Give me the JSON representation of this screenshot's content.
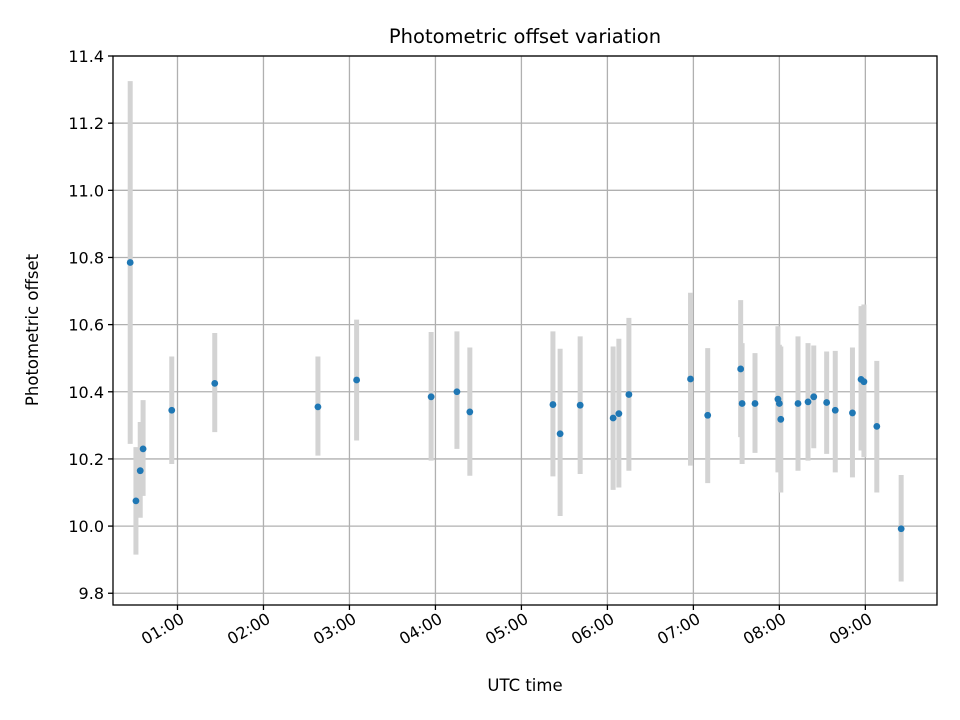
{
  "chart_data": {
    "type": "scatter",
    "title": "Photometric offset variation",
    "xlabel": "UTC time",
    "ylabel": "Photometric offset",
    "x_unit": "UTC time (HH:MM)",
    "xlim": [
      "00:15",
      "09:50"
    ],
    "ylim": [
      9.765,
      11.4
    ],
    "grid": true,
    "x_ticks": [
      "01:00",
      "02:00",
      "03:00",
      "04:00",
      "05:00",
      "06:00",
      "07:00",
      "08:00",
      "09:00"
    ],
    "y_ticks": [
      "9.8",
      "10.0",
      "10.2",
      "10.4",
      "10.6",
      "10.8",
      "11.0",
      "11.2",
      "11.4"
    ],
    "colors": {
      "points": "#1f77b4",
      "errorbars": "#d3d3d3"
    },
    "points": [
      {
        "x": "00:27",
        "y": 10.785,
        "lo": 10.245,
        "hi": 11.325
      },
      {
        "x": "00:31",
        "y": 10.075,
        "lo": 9.915,
        "hi": 10.235
      },
      {
        "x": "00:34",
        "y": 10.165,
        "lo": 10.025,
        "hi": 10.31
      },
      {
        "x": "00:36",
        "y": 10.23,
        "lo": 10.09,
        "hi": 10.375
      },
      {
        "x": "00:56",
        "y": 10.345,
        "lo": 10.185,
        "hi": 10.505
      },
      {
        "x": "01:26",
        "y": 10.425,
        "lo": 10.28,
        "hi": 10.575
      },
      {
        "x": "02:38",
        "y": 10.355,
        "lo": 10.21,
        "hi": 10.505
      },
      {
        "x": "03:05",
        "y": 10.435,
        "lo": 10.255,
        "hi": 10.615
      },
      {
        "x": "03:57",
        "y": 10.385,
        "lo": 10.195,
        "hi": 10.578
      },
      {
        "x": "04:15",
        "y": 10.4,
        "lo": 10.23,
        "hi": 10.58
      },
      {
        "x": "04:24",
        "y": 10.34,
        "lo": 10.15,
        "hi": 10.532
      },
      {
        "x": "05:22",
        "y": 10.362,
        "lo": 10.148,
        "hi": 10.58
      },
      {
        "x": "05:27",
        "y": 10.275,
        "lo": 10.03,
        "hi": 10.528
      },
      {
        "x": "05:41",
        "y": 10.36,
        "lo": 10.155,
        "hi": 10.565
      },
      {
        "x": "06:04",
        "y": 10.322,
        "lo": 10.108,
        "hi": 10.535
      },
      {
        "x": "06:08",
        "y": 10.335,
        "lo": 10.115,
        "hi": 10.558
      },
      {
        "x": "06:15",
        "y": 10.392,
        "lo": 10.165,
        "hi": 10.62
      },
      {
        "x": "06:58",
        "y": 10.438,
        "lo": 10.18,
        "hi": 10.695
      },
      {
        "x": "07:10",
        "y": 10.33,
        "lo": 10.128,
        "hi": 10.53
      },
      {
        "x": "07:33",
        "y": 10.468,
        "lo": 10.265,
        "hi": 10.673
      },
      {
        "x": "07:34",
        "y": 10.365,
        "lo": 10.185,
        "hi": 10.545
      },
      {
        "x": "07:43",
        "y": 10.365,
        "lo": 10.218,
        "hi": 10.515
      },
      {
        "x": "07:59",
        "y": 10.378,
        "lo": 10.16,
        "hi": 10.595
      },
      {
        "x": "08:00",
        "y": 10.365,
        "lo": 10.19,
        "hi": 10.54
      },
      {
        "x": "08:01",
        "y": 10.318,
        "lo": 10.1,
        "hi": 10.535
      },
      {
        "x": "08:13",
        "y": 10.365,
        "lo": 10.165,
        "hi": 10.565
      },
      {
        "x": "08:20",
        "y": 10.37,
        "lo": 10.195,
        "hi": 10.545
      },
      {
        "x": "08:24",
        "y": 10.385,
        "lo": 10.232,
        "hi": 10.538
      },
      {
        "x": "08:33",
        "y": 10.368,
        "lo": 10.215,
        "hi": 10.52
      },
      {
        "x": "08:39",
        "y": 10.345,
        "lo": 10.16,
        "hi": 10.522
      },
      {
        "x": "08:51",
        "y": 10.337,
        "lo": 10.145,
        "hi": 10.532
      },
      {
        "x": "08:57",
        "y": 10.437,
        "lo": 10.225,
        "hi": 10.655
      },
      {
        "x": "08:59",
        "y": 10.43,
        "lo": 10.205,
        "hi": 10.66
      },
      {
        "x": "09:08",
        "y": 10.297,
        "lo": 10.1,
        "hi": 10.492
      },
      {
        "x": "09:25",
        "y": 9.992,
        "lo": 9.835,
        "hi": 10.152
      }
    ]
  }
}
